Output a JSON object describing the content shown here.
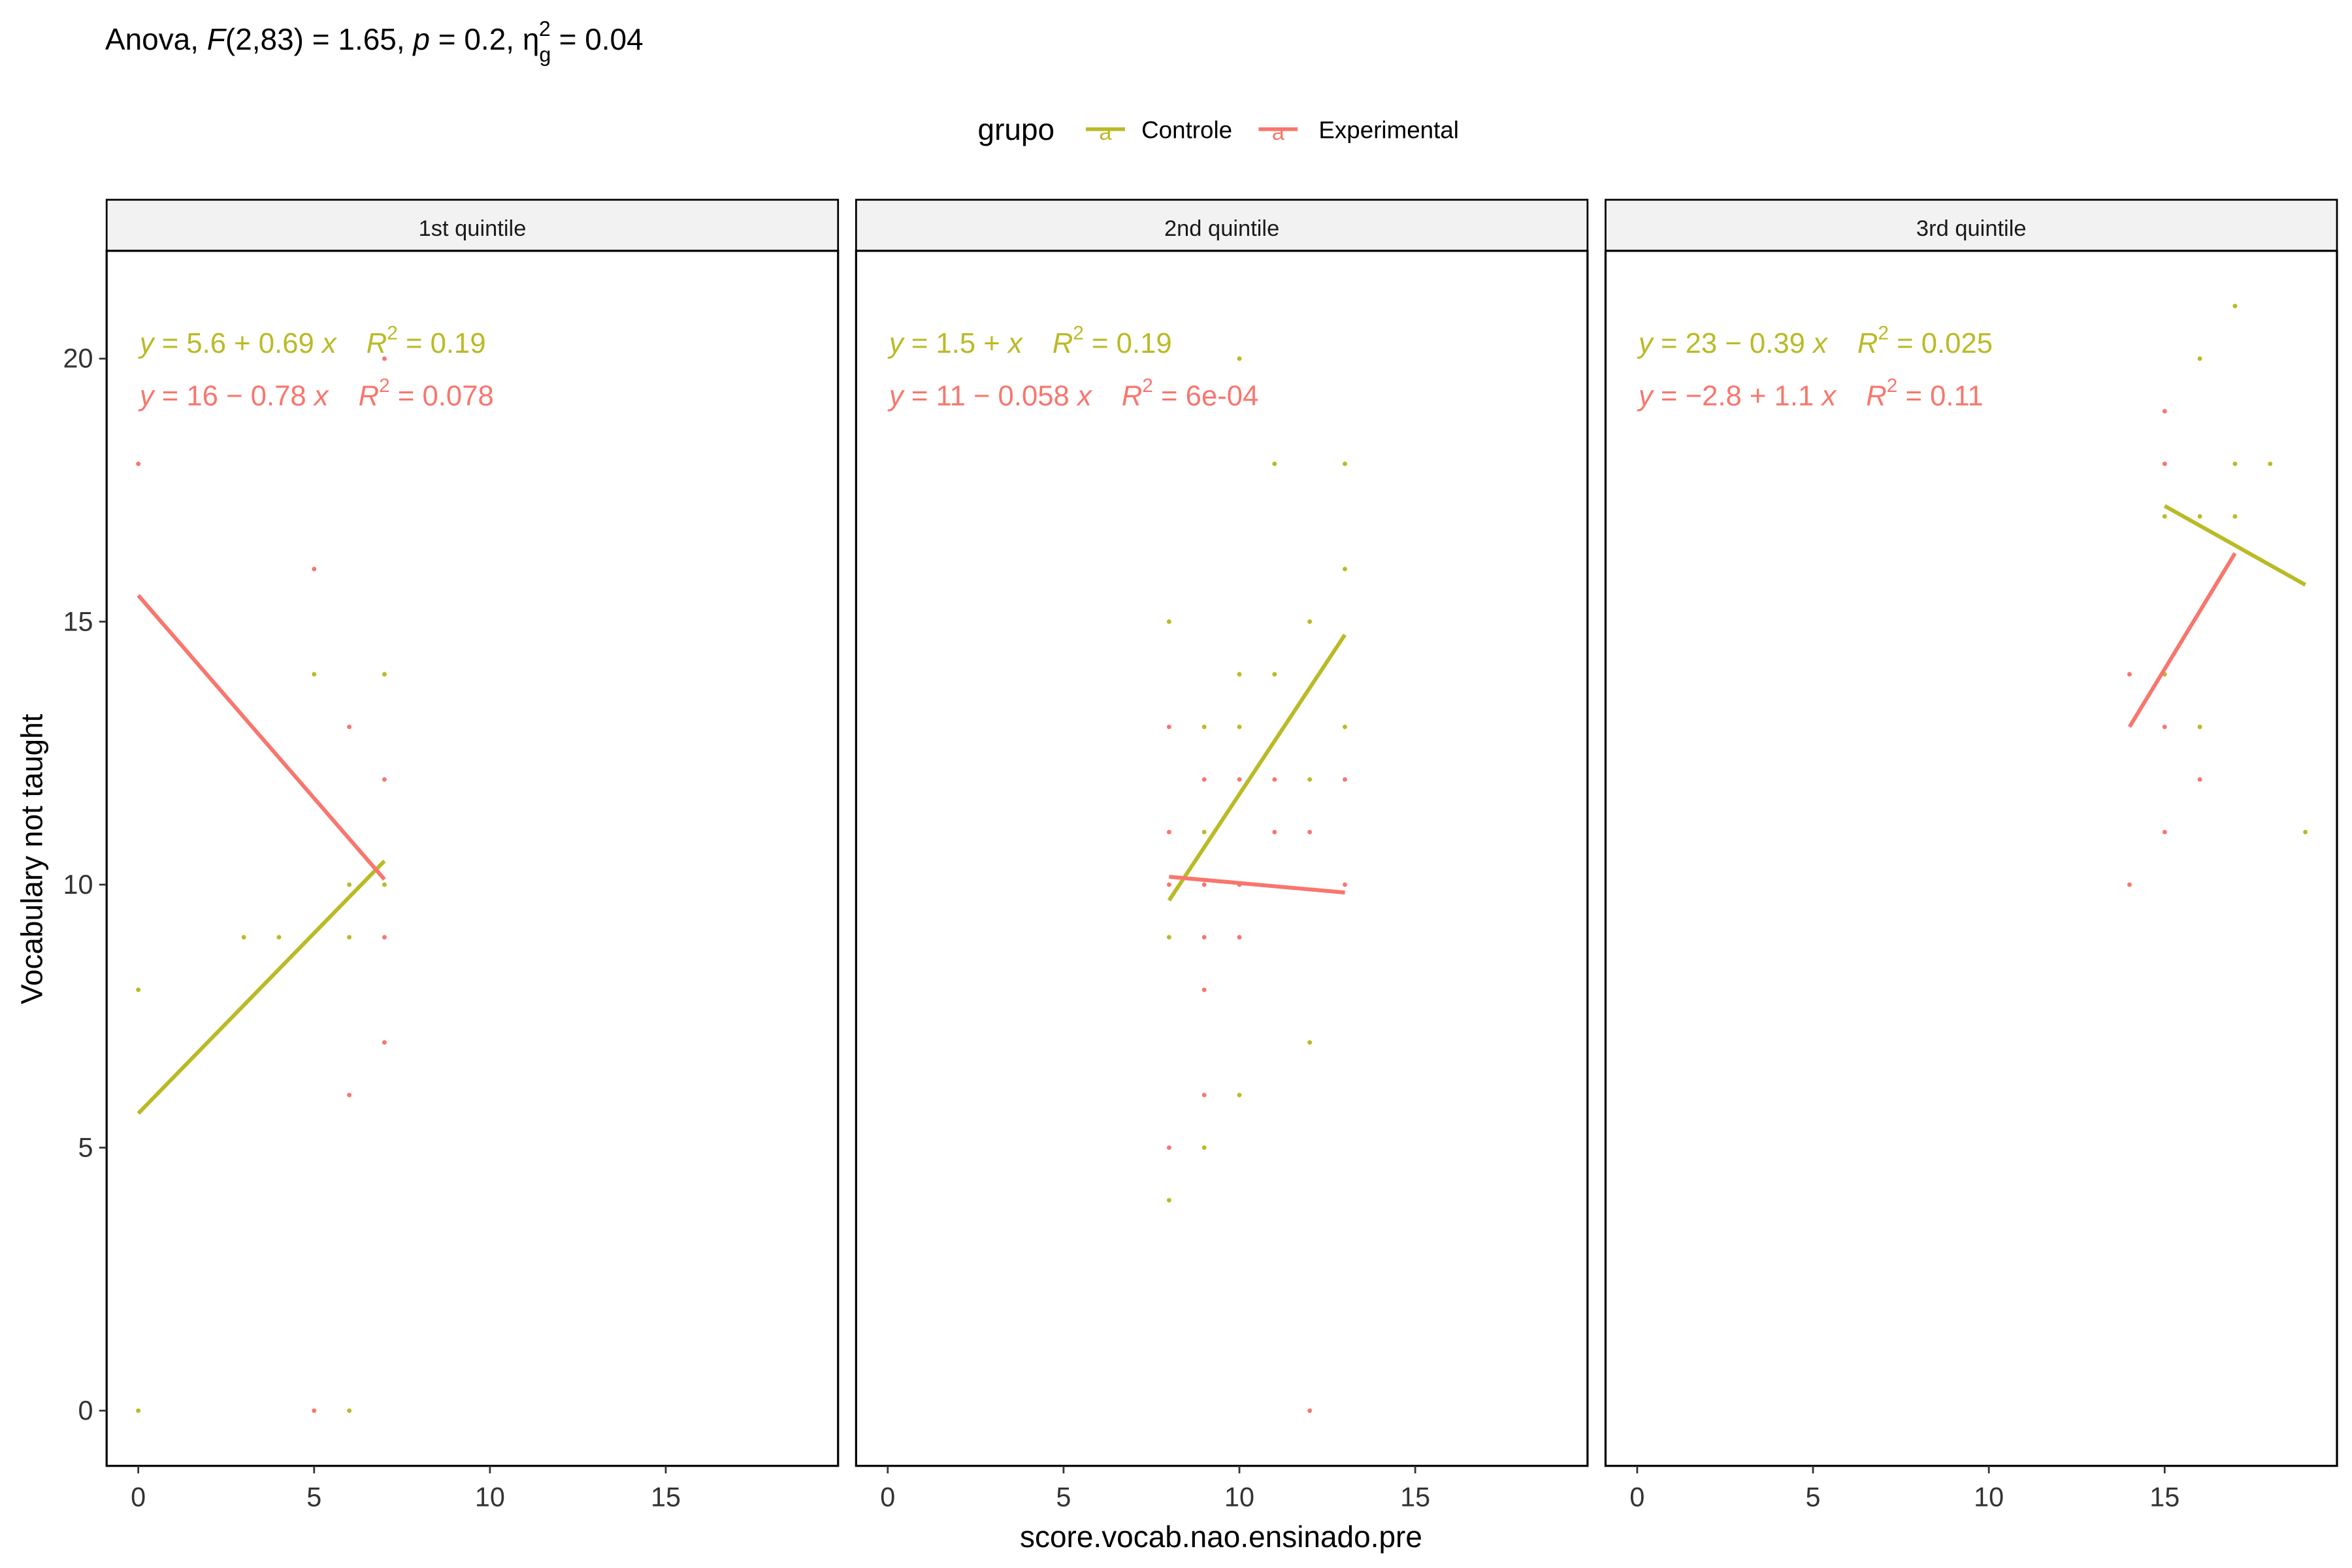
{
  "subtitle": {
    "prefix": "Anova, ",
    "stat_symbol": "F",
    "df": "(2,83)",
    "stat_value": " = 1.65, ",
    "p_symbol": "p",
    "p_value": " = 0.2, ",
    "eta_symbol": "η",
    "eta_sub": "g",
    "eta_sup": "2",
    "eta_value": " = 0.04"
  },
  "legend": {
    "title": "grupo",
    "key_glyph": "a",
    "items": [
      {
        "label": "Controle",
        "color": "#BABA27"
      },
      {
        "label": "Experimental",
        "color": "#F8766D"
      }
    ]
  },
  "colors": {
    "Controle": "#BABA27",
    "Experimental": "#F8766D",
    "strip_fill": "#F2F2F2"
  },
  "chart_data": {
    "type": "scatter",
    "xlabel": "score.vocab.nao.ensinado.pre",
    "ylabel": "Vocabulary not taught",
    "xlim": [
      -0.9,
      19.9
    ],
    "ylim": [
      -1.05,
      22.05
    ],
    "x_ticks": [
      0,
      5,
      10,
      15
    ],
    "y_ticks": [
      0,
      5,
      10,
      15,
      20
    ],
    "grid": false,
    "legend_position": "top",
    "facets": [
      {
        "label": "1st quintile",
        "equations": [
          {
            "group": "Controle",
            "lhs": "y",
            "rhs": " = 5.6 + 0.69 ",
            "xvar": "x",
            "r2_value": " = 0.19"
          },
          {
            "group": "Experimental",
            "lhs": "y",
            "rhs": " = 16 − 0.78 ",
            "xvar": "x",
            "r2_value": " = 0.078"
          }
        ],
        "series": [
          {
            "group": "Controle",
            "points": [
              [
                0,
                0
              ],
              [
                0,
                8
              ],
              [
                3,
                9
              ],
              [
                4,
                9
              ],
              [
                5,
                14
              ],
              [
                6,
                0
              ],
              [
                6,
                9
              ],
              [
                6,
                10
              ],
              [
                7,
                10
              ],
              [
                7,
                14
              ]
            ],
            "fit": [
              [
                0,
                5.65
              ],
              [
                7,
                10.45
              ]
            ]
          },
          {
            "group": "Experimental",
            "points": [
              [
                0,
                18
              ],
              [
                5,
                0
              ],
              [
                5,
                16
              ],
              [
                6,
                6
              ],
              [
                6,
                13
              ],
              [
                7,
                7
              ],
              [
                7,
                9
              ],
              [
                7,
                12
              ],
              [
                7,
                20
              ]
            ],
            "fit": [
              [
                0,
                15.5
              ],
              [
                7,
                10.1
              ]
            ]
          }
        ]
      },
      {
        "label": "2nd quintile",
        "equations": [
          {
            "group": "Controle",
            "lhs": "y",
            "rhs": " = 1.5 + ",
            "xvar": "x",
            "r2_value": " = 0.19"
          },
          {
            "group": "Experimental",
            "lhs": "y",
            "rhs": " = 11 − 0.058 ",
            "xvar": "x",
            "r2_value": " = 6e-04"
          }
        ],
        "series": [
          {
            "group": "Controle",
            "points": [
              [
                8,
                4
              ],
              [
                8,
                9
              ],
              [
                8,
                15
              ],
              [
                9,
                5
              ],
              [
                9,
                11
              ],
              [
                9,
                13
              ],
              [
                10,
                6
              ],
              [
                10,
                13
              ],
              [
                10,
                14
              ],
              [
                10,
                20
              ],
              [
                11,
                14
              ],
              [
                11,
                18
              ],
              [
                12,
                7
              ],
              [
                12,
                12
              ],
              [
                12,
                15
              ],
              [
                13,
                13
              ],
              [
                13,
                16
              ],
              [
                13,
                18
              ]
            ],
            "fit": [
              [
                8,
                9.7
              ],
              [
                13,
                14.75
              ]
            ]
          },
          {
            "group": "Experimental",
            "points": [
              [
                8,
                5
              ],
              [
                8,
                10
              ],
              [
                8,
                11
              ],
              [
                8,
                13
              ],
              [
                9,
                6
              ],
              [
                9,
                8
              ],
              [
                9,
                9
              ],
              [
                9,
                10
              ],
              [
                9,
                12
              ],
              [
                10,
                9
              ],
              [
                10,
                10
              ],
              [
                10,
                12
              ],
              [
                11,
                11
              ],
              [
                11,
                12
              ],
              [
                12,
                0
              ],
              [
                12,
                11
              ],
              [
                13,
                10
              ],
              [
                13,
                12
              ]
            ],
            "fit": [
              [
                8,
                10.15
              ],
              [
                13,
                9.85
              ]
            ]
          }
        ]
      },
      {
        "label": "3rd quintile",
        "equations": [
          {
            "group": "Controle",
            "lhs": "y",
            "rhs": " = 23 − 0.39 ",
            "xvar": "x",
            "r2_value": " = 0.025"
          },
          {
            "group": "Experimental",
            "lhs": "y",
            "rhs": " = −2.8 + 1.1 ",
            "xvar": "x",
            "r2_value": " = 0.11"
          }
        ],
        "series": [
          {
            "group": "Controle",
            "points": [
              [
                15,
                14
              ],
              [
                15,
                17
              ],
              [
                16,
                13
              ],
              [
                16,
                17
              ],
              [
                16,
                20
              ],
              [
                17,
                17
              ],
              [
                17,
                18
              ],
              [
                17,
                21
              ],
              [
                18,
                18
              ],
              [
                19,
                11
              ]
            ],
            "fit": [
              [
                15,
                17.2
              ],
              [
                19,
                15.7
              ]
            ]
          },
          {
            "group": "Experimental",
            "points": [
              [
                14,
                10
              ],
              [
                14,
                14
              ],
              [
                15,
                11
              ],
              [
                15,
                13
              ],
              [
                15,
                18
              ],
              [
                15,
                19
              ],
              [
                16,
                12
              ]
            ],
            "fit": [
              [
                14,
                13.0
              ],
              [
                17,
                16.3
              ]
            ]
          }
        ]
      }
    ]
  }
}
